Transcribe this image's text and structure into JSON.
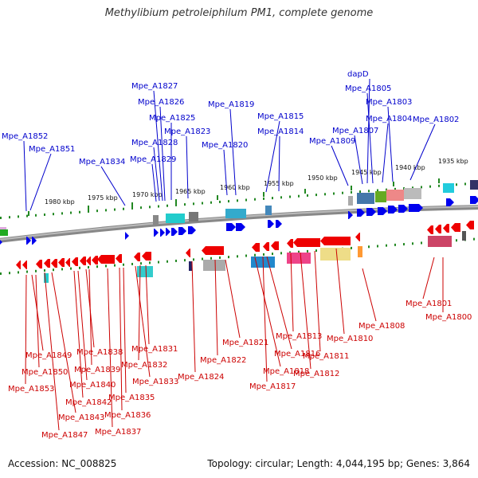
{
  "title": "Methylibium petroleiphilum PM1, complete genome",
  "footer": {
    "accession": "Accession: NC_008825",
    "topology": "Topology: circular; Length: 4,044,195 bp; Genes: 3,864"
  },
  "scale_labels": [
    "1980 kbp",
    "1975 kbp",
    "1970 kbp",
    "1965 kbp",
    "1960 kbp",
    "1955 kbp",
    "1950 kbp",
    "1945 kbp",
    "1940 kbp",
    "1935 kbp"
  ],
  "upper_genes": [
    "Mpe_A1852",
    "Mpe_A1851",
    "Mpe_A1834",
    "Mpe_A1829",
    "Mpe_A1828",
    "Mpe_A1827",
    "Mpe_A1826",
    "Mpe_A1825",
    "Mpe_A1823",
    "Mpe_A1820",
    "Mpe_A1819",
    "Mpe_A1815",
    "Mpe_A1814",
    "Mpe_A1809",
    "Mpe_A1807",
    "dapD",
    "Mpe_A1805",
    "Mpe_A1804",
    "Mpe_A1803",
    "Mpe_A1802"
  ],
  "lower_genes": [
    "Mpe_A1849",
    "Mpe_A1850",
    "Mpe_A1853",
    "Mpe_A1838",
    "Mpe_A1839",
    "Mpe_A1840",
    "Mpe_A1842",
    "Mpe_A1843",
    "Mpe_A1847",
    "Mpe_A1831",
    "Mpe_A1832",
    "Mpe_A1833",
    "Mpe_A1835",
    "Mpe_A1836",
    "Mpe_A1837",
    "Mpe_A1824",
    "Mpe_A1822",
    "Mpe_A1821",
    "Mpe_A1816",
    "Mpe_A1818",
    "Mpe_A1817",
    "Mpe_A1813",
    "Mpe_A1811",
    "Mpe_A1812",
    "Mpe_A1810",
    "Mpe_A1808",
    "Mpe_A1801",
    "Mpe_A1800"
  ],
  "colors": {
    "forward": "#0000ee",
    "reverse": "#ee0000",
    "backbone": "#777777",
    "ticks": "#228822",
    "label_fwd": "#0000cc",
    "label_rev": "#cc0000"
  }
}
